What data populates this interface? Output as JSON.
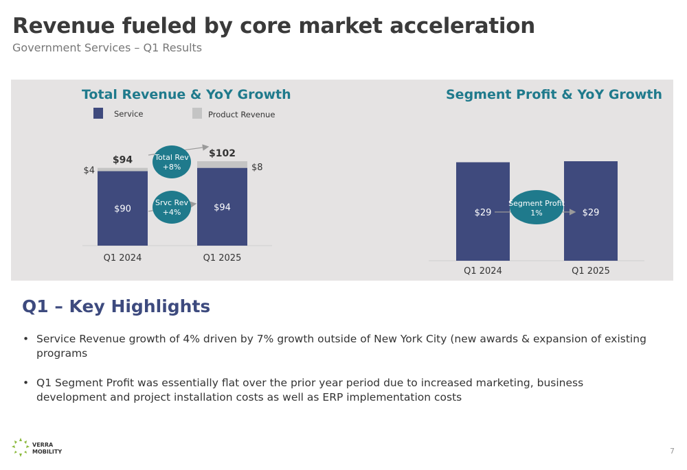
{
  "header": {
    "title": "Revenue fueled by core market acceleration",
    "subtitle": "Government Services – Q1 Results"
  },
  "colors": {
    "service": "#3f4a7d",
    "product": "#c4c4c4",
    "teal": "#1f7a8c",
    "bubble": "#1f7a8c",
    "panel": "#e5e3e3",
    "highlight_title": "#3d4a7e"
  },
  "chart_data": [
    {
      "type": "bar",
      "stacked": true,
      "title": "Total Revenue & YoY Growth",
      "categories": [
        "Q1 2024",
        "Q1 2025"
      ],
      "series": [
        {
          "name": "Service",
          "values": [
            90,
            94
          ],
          "labels": [
            "$90",
            "$94"
          ]
        },
        {
          "name": "Product Revenue",
          "values": [
            4,
            8
          ],
          "labels": [
            "$4",
            "$8"
          ]
        }
      ],
      "totals": [
        94,
        102
      ],
      "total_labels": [
        "$94",
        "$102"
      ],
      "ylim": [
        0,
        102
      ],
      "legend": "top",
      "annotations": [
        {
          "line1": "Total Rev",
          "line2": "+8%"
        },
        {
          "line1": "Srvc Rev",
          "line2": "+4%"
        }
      ]
    },
    {
      "type": "bar",
      "title": "Segment Profit & YoY Growth",
      "categories": [
        "Q1 2024",
        "Q1 2025"
      ],
      "series": [
        {
          "values": [
            29,
            29.3
          ],
          "labels": [
            "$29",
            "$29"
          ]
        }
      ],
      "ylim": [
        0,
        29.3
      ],
      "annotations": [
        {
          "line1": "Segment Profit",
          "line2": "1%"
        }
      ]
    }
  ],
  "highlights": {
    "title": "Q1 – Key Highlights",
    "bullet_char": "•",
    "items": [
      "Service Revenue growth of 4% driven by 7% growth outside of New York City (new awards & expansion of existing programs",
      "Q1 Segment Profit was essentially flat over the prior year period due to increased marketing, business development and project installation costs as well as ERP implementation costs"
    ]
  },
  "logo": {
    "text": "VERRA\nMOBILITY"
  },
  "page_number": "7"
}
